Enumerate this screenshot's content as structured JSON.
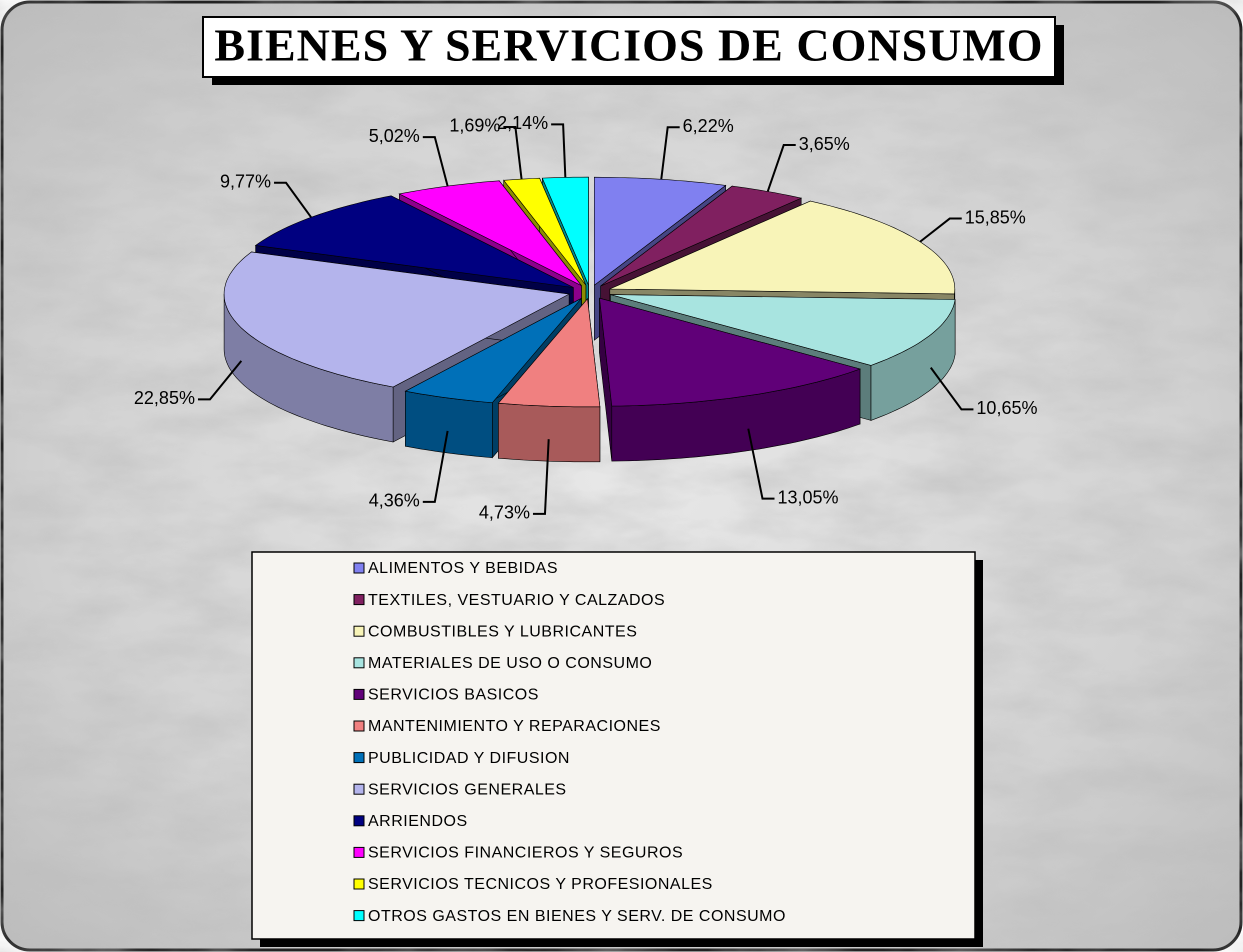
{
  "chart_data": {
    "type": "pie",
    "title": "BIENES Y SERVICIOS DE CONSUMO",
    "categories": [
      "ALIMENTOS Y BEBIDAS",
      "TEXTILES, VESTUARIO Y CALZADOS",
      "COMBUSTIBLES Y LUBRICANTES",
      "MATERIALES DE USO O CONSUMO",
      "SERVICIOS BASICOS",
      "MANTENIMIENTO Y REPARACIONES",
      "PUBLICIDAD Y DIFUSION",
      "SERVICIOS GENERALES",
      "ARRIENDOS",
      "SERVICIOS FINANCIEROS Y SEGUROS",
      "SERVICIOS TECNICOS Y PROFESIONALES",
      "OTROS GASTOS EN BIENES Y SERV. DE CONSUMO"
    ],
    "values": [
      6.22,
      3.65,
      15.85,
      10.65,
      13.05,
      4.73,
      4.36,
      22.85,
      9.77,
      5.02,
      1.69,
      2.14
    ],
    "value_labels": [
      "6,22%",
      "3,65%",
      "15,85%",
      "10,65%",
      "13,05%",
      "4,73%",
      "4,36%",
      "22,85%",
      "9,77%",
      "5,02%",
      "1,69%",
      "2,14%"
    ],
    "colors": [
      "#8080f0",
      "#802060",
      "#f8f4b8",
      "#a8e4e0",
      "#600078",
      "#f08080",
      "#0070b8",
      "#b4b4ec",
      "#000080",
      "#ff00ff",
      "#ffff00",
      "#00ffff"
    ],
    "legend": "bottom"
  }
}
